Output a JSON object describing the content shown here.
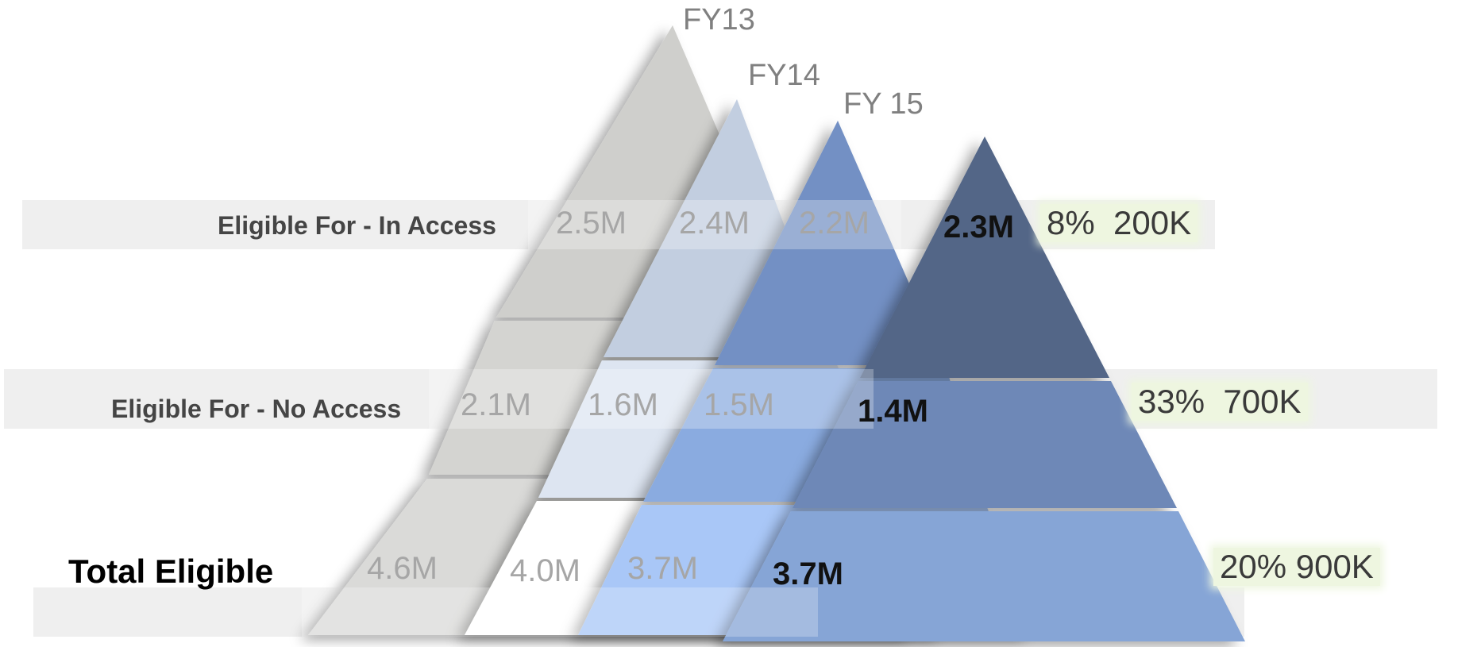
{
  "years": [
    {
      "label": "FY13"
    },
    {
      "label": "FY14"
    },
    {
      "label": "FY 15"
    },
    {
      "label": ""
    }
  ],
  "rows": [
    {
      "label": "Eligible For - In Access",
      "values": [
        "2.5M",
        "2.4M",
        "2.2M",
        "2.3M"
      ],
      "delta_pct": "8%",
      "delta_abs": "200K"
    },
    {
      "label": "Eligible For - No Access",
      "values": [
        "2.1M",
        "1.6M",
        "1.5M",
        "1.4M"
      ],
      "delta_pct": "33%",
      "delta_abs": "700K"
    },
    {
      "label": "Total Eligible",
      "values": [
        "4.6M",
        "4.0M",
        "3.7M",
        "3.7M"
      ],
      "delta_pct": "20%",
      "delta_abs": "900K"
    }
  ],
  "colors": {
    "fy13": [
      "#cfcfcc",
      "#d4d4d1",
      "#dadad8"
    ],
    "fy14": [
      "#c2cee0",
      "#dde5f1",
      "#ffffff"
    ],
    "fy15": [
      "#7390c4",
      "#8aabe0",
      "#a9c7f7"
    ],
    "current": [
      "#536687",
      "#6e88b7",
      "#86a5d6"
    ],
    "band": "#e2e2e2",
    "delta_bg": "#eef6e0"
  }
}
